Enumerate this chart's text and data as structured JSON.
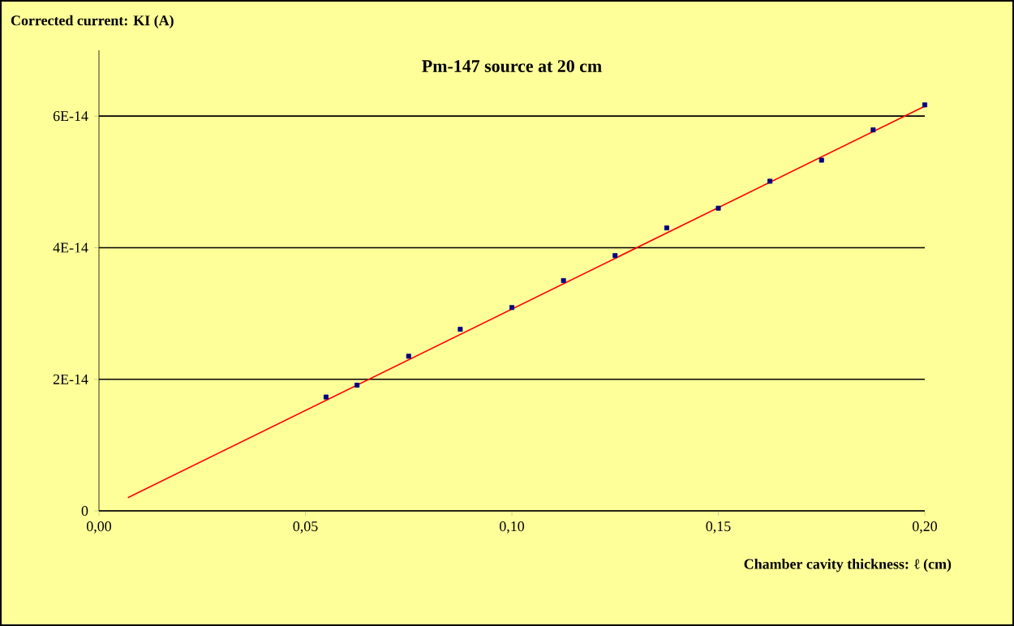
{
  "chart_data": {
    "type": "scatter",
    "title": "Pm-147 source at 20 cm",
    "xlabel": "Chamber cavity thickness: ℓ (cm)",
    "ylabel": "Corrected current: KI (A)",
    "xlim": [
      0,
      0.2
    ],
    "ylim": [
      0,
      7e-14
    ],
    "xticks": [
      {
        "value": 0,
        "label": "0,00"
      },
      {
        "value": 0.05,
        "label": "0,05"
      },
      {
        "value": 0.1,
        "label": "0,10"
      },
      {
        "value": 0.15,
        "label": "0,15"
      },
      {
        "value": 0.2,
        "label": "0,20"
      }
    ],
    "yticks": [
      {
        "value": 0,
        "label": "0"
      },
      {
        "value": 2e-14,
        "label": "2E-14"
      },
      {
        "value": 4e-14,
        "label": "4E-14"
      },
      {
        "value": 6e-14,
        "label": "6E-14"
      }
    ],
    "grid": "y",
    "marker": "square",
    "series": [
      {
        "color": "#000080",
        "x": [
          0.055,
          0.0625,
          0.075,
          0.0875,
          0.1,
          0.1125,
          0.125,
          0.1375,
          0.15,
          0.1625,
          0.175,
          0.1875,
          0.2
        ],
        "values": [
          1.73e-14,
          1.91e-14,
          2.35e-14,
          2.76e-14,
          3.09e-14,
          3.5e-14,
          3.88e-14,
          4.3e-14,
          4.6e-14,
          5.01e-14,
          5.33e-14,
          5.79e-14,
          6.17e-14
        ]
      },
      {
        "type": "line",
        "color": "#ff0000",
        "marker": "none",
        "x": [
          0.007,
          0.2
        ],
        "values": [
          2e-15,
          6.15e-14
        ]
      }
    ]
  }
}
